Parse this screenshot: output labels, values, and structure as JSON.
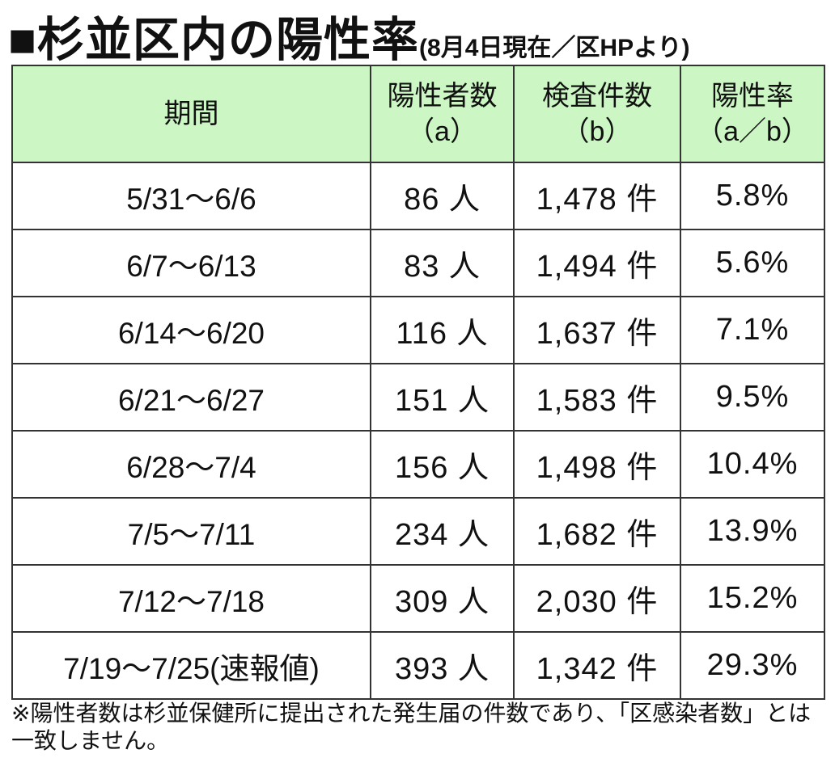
{
  "header": {
    "title": "■杉並区内の陽性率",
    "subtitle": "(8月4日現在／区HPより)"
  },
  "table": {
    "columns": [
      {
        "label": "期間"
      },
      {
        "label": "陽性者数",
        "sub": "（a）"
      },
      {
        "label": "検査件数",
        "sub": "（b）"
      },
      {
        "label": "陽性率",
        "sub": "（a／b）"
      }
    ],
    "rows": [
      [
        "5/31～6/6",
        "86 人",
        "1,478 件",
        "5.8%"
      ],
      [
        "6/7～6/13",
        "83 人",
        "1,494 件",
        "5.6%"
      ],
      [
        "6/14～6/20",
        "116 人",
        "1,637 件",
        "7.1%"
      ],
      [
        "6/21～6/27",
        "151 人",
        "1,583 件",
        "9.5%"
      ],
      [
        "6/28～7/4",
        "156 人",
        "1,498 件",
        "10.4%"
      ],
      [
        "7/5～7/11",
        "234 人",
        "1,682 件",
        "13.9%"
      ],
      [
        "7/12～7/18",
        "309 人",
        "2,030 件",
        "15.2%"
      ],
      [
        "7/19～7/25(速報値)",
        "393 人",
        "1,342 件",
        "29.3%"
      ]
    ]
  },
  "footnote": "※陽性者数は杉並保健所に提出された発生届の件数であり、「区感染者数」とは一致しません。"
}
